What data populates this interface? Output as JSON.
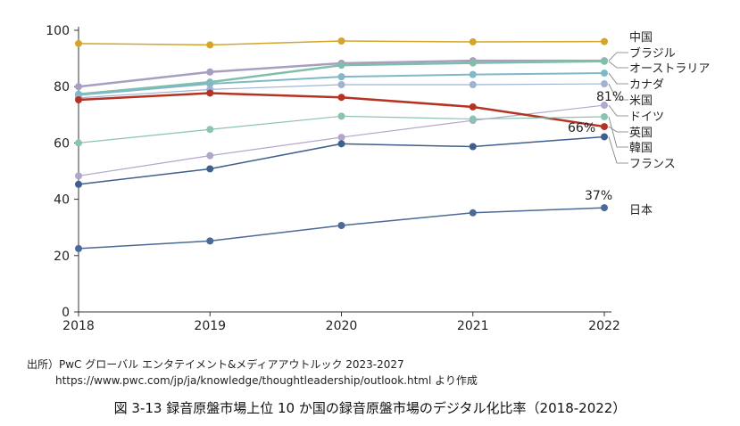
{
  "chart_data": {
    "type": "line",
    "x": [
      2018,
      2019,
      2020,
      2021,
      2022
    ],
    "ylim": [
      0,
      100
    ],
    "yticks": [
      0,
      20,
      40,
      60,
      80,
      100
    ],
    "grid": false,
    "legend": "right, end-of-line labels",
    "series": [
      {
        "name": "中国",
        "color": "#d4a52a",
        "values": [
          95.3,
          94.8,
          96.2,
          95.9,
          96.0
        ],
        "width": 1.5
      },
      {
        "name": "ブラジル",
        "color": "#a89ec0",
        "values": [
          80.0,
          85.2,
          88.3,
          89.2,
          89.2
        ],
        "width": 2.5
      },
      {
        "name": "オーストラリア",
        "color": "#7fbfaa",
        "values": [
          77.3,
          81.6,
          87.6,
          88.4,
          89.0
        ],
        "width": 2.5
      },
      {
        "name": "カナダ",
        "color": "#80b8c8",
        "values": [
          77.0,
          81.0,
          83.5,
          84.3,
          84.8
        ],
        "width": 2
      },
      {
        "name": "米国",
        "color": "#9fb3d1",
        "values": [
          76.0,
          79.0,
          80.7,
          80.7,
          81.0
        ],
        "width": 1.2
      },
      {
        "name": "ドイツ",
        "color": "#b1a7cb",
        "values": [
          48.3,
          55.5,
          62.0,
          68.0,
          73.4
        ],
        "width": 1.2
      },
      {
        "name": "英国",
        "color": "#b53323",
        "values": [
          75.3,
          77.7,
          76.2,
          72.8,
          65.8
        ],
        "width": 2.5
      },
      {
        "name": "韓国",
        "color": "#8cc3b0",
        "values": [
          60.0,
          64.8,
          69.5,
          68.5,
          69.3
        ],
        "width": 1.2
      },
      {
        "name": "フランス",
        "color": "#3f5f8d",
        "values": [
          45.3,
          50.8,
          59.7,
          58.7,
          62.2
        ],
        "width": 1.5
      },
      {
        "name": "日本",
        "color": "#4b6a95",
        "values": [
          22.5,
          25.2,
          30.7,
          35.2,
          37.0
        ],
        "width": 1.5
      }
    ],
    "annotations": [
      "81%",
      "66%",
      "37%"
    ]
  },
  "source": {
    "line1": "出所）PwC グローバル エンタテイメント&メディアアウトルック 2023-2027",
    "line2": "https://www.pwc.com/jp/ja/knowledge/thoughtleadership/outlook.html より作成"
  },
  "caption": "図 3-13 録音原盤市場上位 10 か国の録音原盤市場のデジタル化比率（2018-2022）"
}
